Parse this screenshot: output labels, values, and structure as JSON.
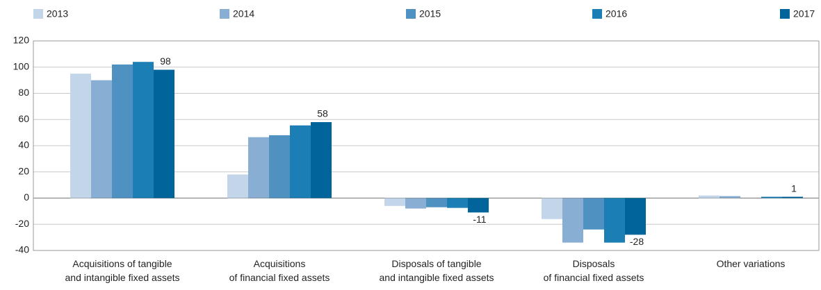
{
  "chart_data": {
    "type": "bar",
    "categories": [
      [
        "Acquisitions of tangible",
        "and intangible fixed assets"
      ],
      [
        "Acquisitions",
        "of financial fixed assets"
      ],
      [
        "Disposals of tangible",
        "and intangible fixed assets"
      ],
      [
        "Disposals",
        "of financial fixed assets"
      ],
      [
        "Other variations"
      ]
    ],
    "series": [
      {
        "name": "2013",
        "color": "#c2d5e9",
        "values": [
          95,
          18,
          -6,
          -16,
          2
        ]
      },
      {
        "name": "2014",
        "color": "#88afd3",
        "values": [
          90,
          46.5,
          -8,
          -34,
          1.5
        ]
      },
      {
        "name": "2015",
        "color": "#4f92c1",
        "values": [
          102,
          48,
          -7,
          -24,
          0
        ]
      },
      {
        "name": "2016",
        "color": "#1b7eb5",
        "values": [
          104,
          55.5,
          -7.5,
          -34,
          1
        ]
      },
      {
        "name": "2017",
        "color": "#01649b",
        "values": [
          98,
          58,
          -11,
          -28,
          1
        ],
        "show_labels": true
      }
    ],
    "ylim": [
      -40,
      120
    ],
    "yticks": [
      -40,
      -20,
      0,
      20,
      40,
      60,
      80,
      100,
      120
    ],
    "grid": true,
    "legend": "top"
  }
}
